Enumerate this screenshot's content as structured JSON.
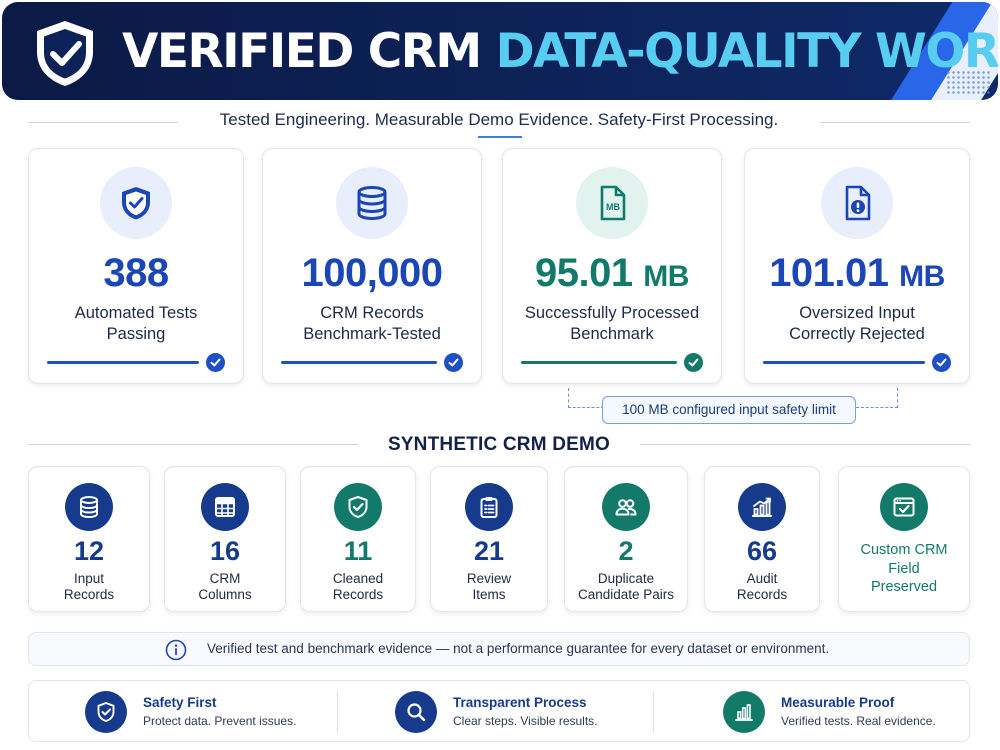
{
  "header": {
    "title_white": "VERIFIED CRM",
    "title_accent": "DATA-QUALITY WORKFLOW",
    "logo_icon": "shield-check-icon"
  },
  "tagline": "Tested Engineering. Measurable Demo Evidence. Safety-First Processing.",
  "stats": [
    {
      "icon": "shield-check-icon",
      "value": "388",
      "unit": "",
      "label_line1": "Automated Tests",
      "label_line2": "Passing",
      "color": "#1b46b5"
    },
    {
      "icon": "database-icon",
      "value": "100,000",
      "unit": "",
      "label_line1": "CRM Records",
      "label_line2": "Benchmark-Tested",
      "color": "#1b46b5"
    },
    {
      "icon": "file-mb-icon",
      "icon_text": "MB",
      "value": "95.01",
      "unit": "MB",
      "label_line1": "Successfully Processed",
      "label_line2": "Benchmark",
      "color": "#127a6a"
    },
    {
      "icon": "file-alert-icon",
      "value": "101.01",
      "unit": "MB",
      "label_line1": "Oversized Input",
      "label_line2": "Correctly Rejected",
      "color": "#1b46b5"
    }
  ],
  "limit_note": "100 MB configured input safety limit",
  "demo": {
    "title": "SYNTHETIC CRM DEMO",
    "items": [
      {
        "icon": "database-icon",
        "value": "12",
        "label_line1": "Input",
        "label_line2": "Records"
      },
      {
        "icon": "table-grid-icon",
        "value": "16",
        "label_line1": "CRM",
        "label_line2": "Columns"
      },
      {
        "icon": "shield-check-icon",
        "value": "11",
        "label_line1": "Cleaned",
        "label_line2": "Records"
      },
      {
        "icon": "clipboard-list-icon",
        "value": "21",
        "label_line1": "Review",
        "label_line2": "Items"
      },
      {
        "icon": "users-icon",
        "value": "2",
        "label_line1": "Duplicate",
        "label_line2": "Candidate Pairs"
      },
      {
        "icon": "bar-chart-icon",
        "value": "66",
        "label_line1": "Audit",
        "label_line2": "Records"
      },
      {
        "icon": "window-check-icon",
        "label_line1": "Custom CRM",
        "label_line2": "Field",
        "label_line3": "Preserved"
      }
    ]
  },
  "disclaimer": "Verified test and benchmark evidence — not a performance guarantee for every dataset or environment.",
  "features": [
    {
      "icon": "shield-check-icon",
      "title": "Safety First",
      "subtitle": "Protect data. Prevent issues."
    },
    {
      "icon": "search-icon",
      "title": "Transparent Process",
      "subtitle": "Clear steps. Visible results."
    },
    {
      "icon": "bar-chart-icon",
      "title": "Measurable Proof",
      "subtitle": "Verified tests. Real evidence."
    }
  ],
  "colors": {
    "navy": "#0b1a46",
    "accent_cyan": "#58cdf2",
    "blue": "#1b46b5",
    "teal": "#127a6a"
  }
}
